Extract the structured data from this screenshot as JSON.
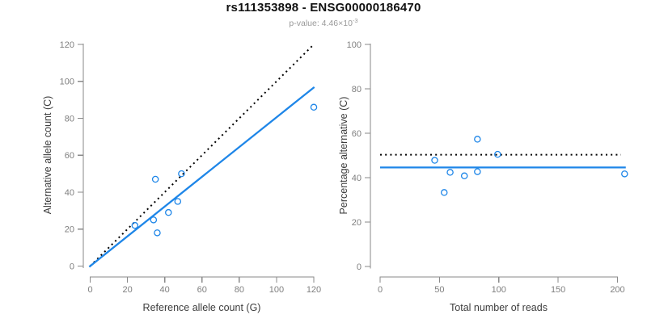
{
  "header": {
    "title": "rs111353898 - ENSG00000186470",
    "subtitle_prefix": "p-value: 4.46×10",
    "subtitle_exponent": "-3"
  },
  "colors": {
    "accent_blue": "#1e86e8",
    "line_black": "#000000",
    "axis_gray": "#8a8a8a",
    "tick_label_gray": "#7f7f7f",
    "axis_title_gray": "#3d3d3d",
    "subtitle_gray": "#999999"
  },
  "chart_data": [
    {
      "type": "scatter",
      "name": "allele-counts-scatter",
      "xlabel": "Reference allele count (G)",
      "ylabel": "Alternative allele count (C)",
      "xlim": [
        0,
        120
      ],
      "ylim": [
        0,
        120
      ],
      "xticks": [
        0,
        20,
        40,
        60,
        80,
        100,
        120
      ],
      "yticks": [
        0,
        20,
        40,
        60,
        80,
        100,
        120
      ],
      "grid": false,
      "legend": false,
      "points": [
        {
          "x": 24,
          "y": 22
        },
        {
          "x": 34,
          "y": 25
        },
        {
          "x": 35,
          "y": 47
        },
        {
          "x": 36,
          "y": 18
        },
        {
          "x": 42,
          "y": 29
        },
        {
          "x": 47,
          "y": 35
        },
        {
          "x": 49,
          "y": 50
        },
        {
          "x": 120,
          "y": 86
        }
      ],
      "lines": [
        {
          "name": "identity-dotted-line",
          "style": "dotted",
          "color": "#000000",
          "from": {
            "x": 0,
            "y": 0
          },
          "to": {
            "x": 119.5,
            "y": 119.5
          }
        },
        {
          "name": "fitted-ratio-line",
          "style": "solid",
          "color": "#1e86e8",
          "from": {
            "x": -0.5,
            "y": -0.4
          },
          "to": {
            "x": 120.3,
            "y": 96.9
          }
        }
      ]
    },
    {
      "type": "scatter",
      "name": "percentage-vs-reads-scatter",
      "xlabel": "Total number of reads",
      "ylabel": "Percentage alternative (C)",
      "xlim": [
        0,
        200
      ],
      "ylim": [
        0,
        100
      ],
      "xticks": [
        0,
        50,
        100,
        150,
        200
      ],
      "yticks": [
        0,
        20,
        40,
        60,
        80,
        100
      ],
      "grid": false,
      "legend": false,
      "points": [
        {
          "x": 46,
          "y": 47.8
        },
        {
          "x": 54,
          "y": 33.3
        },
        {
          "x": 59,
          "y": 42.4
        },
        {
          "x": 71,
          "y": 40.8
        },
        {
          "x": 82,
          "y": 57.3
        },
        {
          "x": 82,
          "y": 42.7
        },
        {
          "x": 99,
          "y": 50.5
        },
        {
          "x": 206,
          "y": 41.7
        }
      ],
      "lines": [
        {
          "name": "fifty-percent-dotted-line",
          "style": "dotted",
          "color": "#000000",
          "from": {
            "x": 0,
            "y": 50.3
          },
          "to": {
            "x": 203,
            "y": 50.3
          }
        },
        {
          "name": "mean-percentage-line",
          "style": "solid",
          "color": "#1e86e8",
          "from": {
            "x": 0,
            "y": 44.6
          },
          "to": {
            "x": 207,
            "y": 44.6
          }
        }
      ]
    }
  ]
}
